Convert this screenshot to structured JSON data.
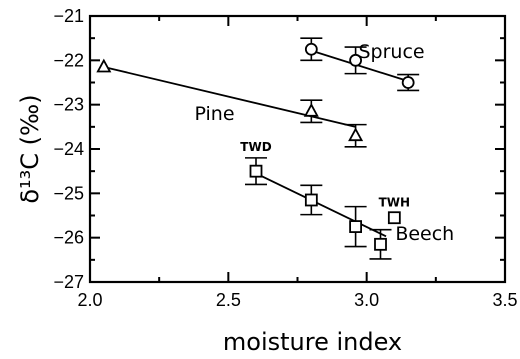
{
  "chart_data": {
    "type": "scatter",
    "xlabel": "moisture index",
    "ylabel": "δ¹³C (‰)",
    "xlim": [
      2.0,
      3.5
    ],
    "ylim": [
      -27,
      -21
    ],
    "x_ticks": [
      2.0,
      2.5,
      3.0,
      3.5
    ],
    "x_tick_labels": [
      "2.0",
      "2.5",
      "3.0",
      "3.5"
    ],
    "y_ticks": [
      -27,
      -26,
      -25,
      -24,
      -23,
      -22,
      -21
    ],
    "y_tick_labels": [
      "−27",
      "−26",
      "−25",
      "−24",
      "−23",
      "−22",
      "−21"
    ],
    "grid": false,
    "series": [
      {
        "name": "Spruce",
        "marker": "circle",
        "points": [
          {
            "x": 2.8,
            "y": -21.75,
            "err": 0.25
          },
          {
            "x": 2.96,
            "y": -22.0,
            "err": 0.3
          },
          {
            "x": 3.15,
            "y": -22.5,
            "err": 0.18
          }
        ],
        "trend": [
          [
            2.8,
            -21.78
          ],
          [
            3.15,
            -22.47
          ]
        ]
      },
      {
        "name": "Pine",
        "marker": "triangle",
        "points": [
          {
            "x": 2.05,
            "y": -22.15,
            "err": 0
          },
          {
            "x": 2.8,
            "y": -23.15,
            "err": 0.25
          },
          {
            "x": 2.96,
            "y": -23.7,
            "err": 0.25
          }
        ],
        "trend": [
          [
            2.05,
            -22.15
          ],
          [
            2.96,
            -23.5
          ]
        ]
      },
      {
        "name": "Beech",
        "marker": "square",
        "points": [
          {
            "x": 2.6,
            "y": -24.5,
            "err": 0.3
          },
          {
            "x": 2.8,
            "y": -25.15,
            "err": 0.33
          },
          {
            "x": 2.96,
            "y": -25.75,
            "err": 0.45
          },
          {
            "x": 3.05,
            "y": -26.15,
            "err": 0.33
          },
          {
            "x": 3.1,
            "y": -25.55,
            "err": 0
          }
        ],
        "trend": [
          [
            2.6,
            -24.55
          ],
          [
            3.07,
            -25.97
          ]
        ]
      }
    ],
    "annotations": [
      {
        "text": "TWD",
        "x": 2.6,
        "y": -24.05
      },
      {
        "text": "TWH",
        "x": 3.1,
        "y": -25.3
      }
    ],
    "series_label_positions": [
      {
        "text": "Spruce",
        "x": 3.09,
        "y": -21.95
      },
      {
        "text": "Pine",
        "x": 2.45,
        "y": -23.35
      },
      {
        "text": "Beech",
        "x": 3.21,
        "y": -26.05
      }
    ]
  }
}
